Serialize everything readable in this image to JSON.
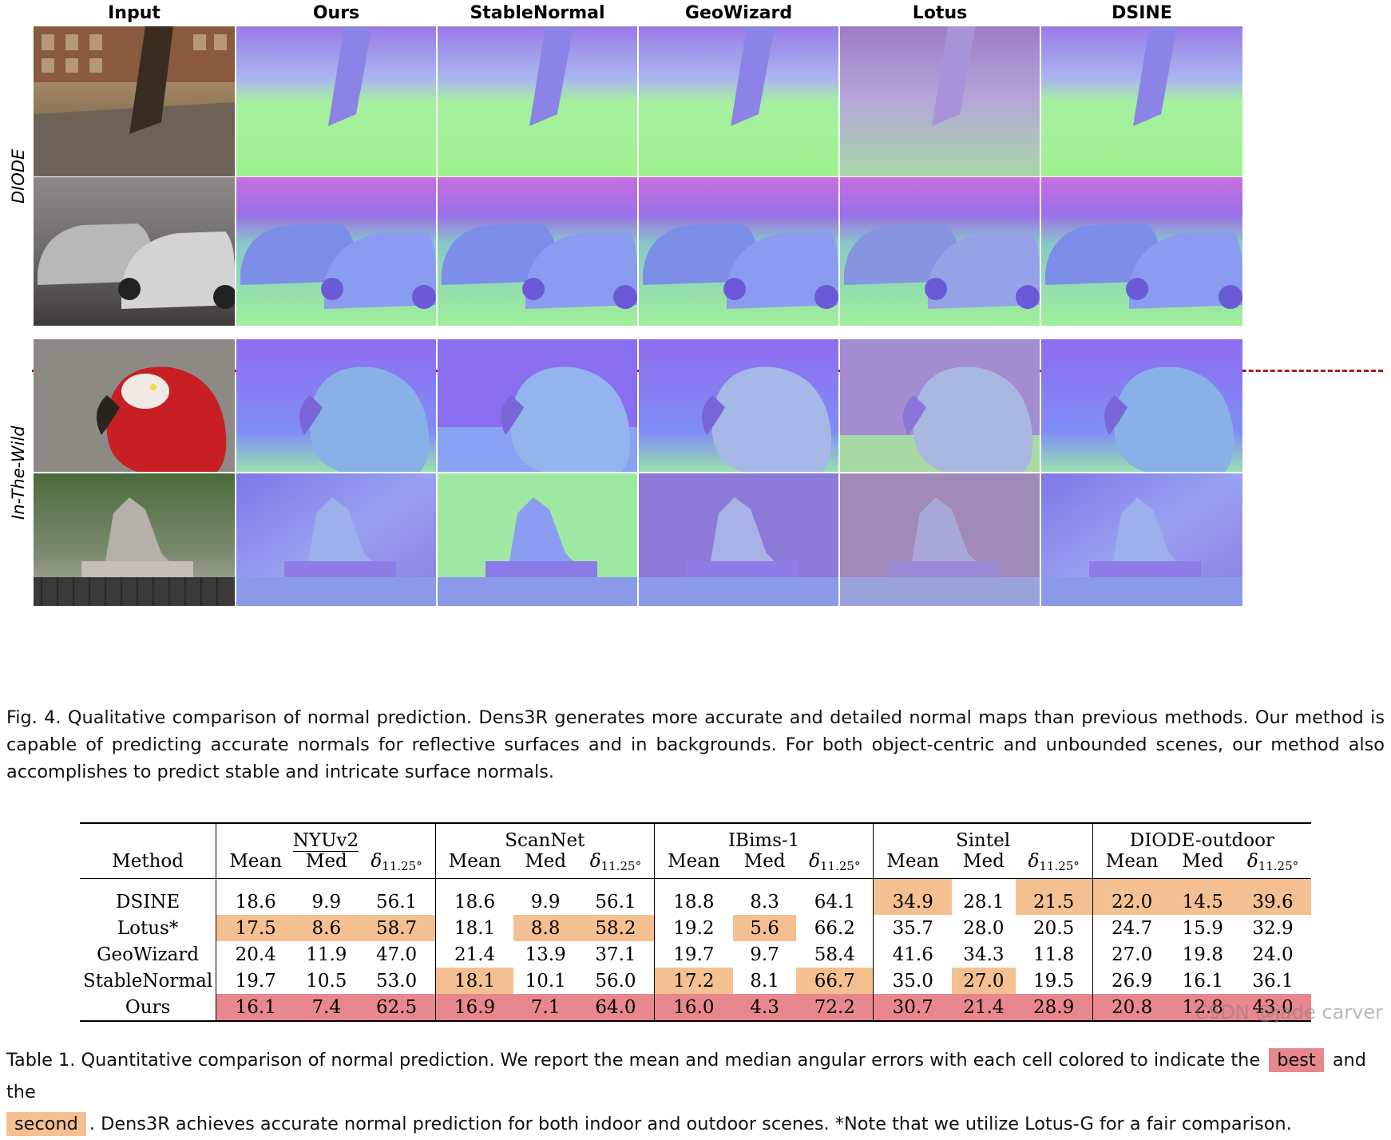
{
  "figure": {
    "columns": [
      "Input",
      "Ours",
      "StableNormal",
      "GeoWizard",
      "Lotus",
      "DSINE"
    ],
    "row_groups": [
      "DIODE",
      "In-The-Wild"
    ],
    "caption": "Fig. 4.  Qualitative comparison of normal prediction. Dens3R generates more accurate and detailed normal maps than previous methods. Our method is capable of predicting accurate normals for reflective surfaces and in backgrounds. For both object-centric and unbounded scenes, our method also accomplishes to predict stable and intricate surface normals."
  },
  "table": {
    "method_header": "Method",
    "groups": [
      "NYUv2",
      "ScanNet",
      "IBims-1",
      "Sintel",
      "DIODE-outdoor"
    ],
    "metrics": [
      "Mean",
      "Med",
      "δ",
      "11.25°"
    ],
    "rows": [
      {
        "method": "DSINE",
        "values": [
          "18.6",
          "9.9",
          "56.1",
          "18.6",
          "9.9",
          "56.1",
          "18.8",
          "8.3",
          "64.1",
          "34.9",
          "28.1",
          "21.5",
          "22.0",
          "14.5",
          "39.6"
        ]
      },
      {
        "method": "Lotus*",
        "values": [
          "17.5",
          "8.6",
          "58.7",
          "18.1",
          "8.8",
          "58.2",
          "19.2",
          "5.6",
          "66.2",
          "35.7",
          "28.0",
          "20.5",
          "24.7",
          "15.9",
          "32.9"
        ]
      },
      {
        "method": "GeoWizard",
        "values": [
          "20.4",
          "11.9",
          "47.0",
          "21.4",
          "13.9",
          "37.1",
          "19.7",
          "9.7",
          "58.4",
          "41.6",
          "34.3",
          "11.8",
          "27.0",
          "19.8",
          "24.0"
        ]
      },
      {
        "method": "StableNormal",
        "values": [
          "19.7",
          "10.5",
          "53.0",
          "18.1",
          "10.1",
          "56.0",
          "17.2",
          "8.1",
          "66.7",
          "35.0",
          "27.0",
          "19.5",
          "26.9",
          "16.1",
          "36.1"
        ]
      },
      {
        "method": "Ours",
        "values": [
          "16.1",
          "7.4",
          "62.5",
          "16.9",
          "7.1",
          "64.0",
          "16.0",
          "4.3",
          "72.2",
          "30.7",
          "21.4",
          "28.9",
          "20.8",
          "12.8",
          "43.0"
        ]
      }
    ],
    "highlight": {
      "best": [
        [
          4,
          0
        ],
        [
          4,
          1
        ],
        [
          4,
          2
        ],
        [
          4,
          3
        ],
        [
          4,
          4
        ],
        [
          4,
          5
        ],
        [
          4,
          6
        ],
        [
          4,
          7
        ],
        [
          4,
          8
        ],
        [
          4,
          9
        ],
        [
          4,
          10
        ],
        [
          4,
          11
        ],
        [
          4,
          12
        ],
        [
          4,
          13
        ],
        [
          4,
          14
        ]
      ],
      "second": [
        [
          0,
          9
        ],
        [
          0,
          11
        ],
        [
          0,
          12
        ],
        [
          0,
          13
        ],
        [
          0,
          14
        ],
        [
          1,
          0
        ],
        [
          1,
          1
        ],
        [
          1,
          2
        ],
        [
          1,
          4
        ],
        [
          1,
          5
        ],
        [
          1,
          7
        ],
        [
          3,
          3
        ],
        [
          3,
          6
        ],
        [
          3,
          8
        ],
        [
          3,
          10
        ]
      ]
    },
    "colors": {
      "best": "#e8878d",
      "second": "#f5c091"
    },
    "caption": {
      "part1": "Table 1.  Quantitative comparison of normal prediction. We report the mean and median angular errors with each cell colored to indicate the",
      "best_word": "best",
      "part2": "and the",
      "second_word": "second",
      "part3": ". Dens3R achieves accurate normal prediction for both indoor and outdoor scenes. *Note that we utilize Lotus-G for a fair comparison."
    }
  },
  "watermark": "CSDN @jade carver"
}
